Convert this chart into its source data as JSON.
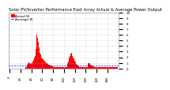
{
  "title": "Solar PV/Inverter Performance East Array Actual & Average Power Output",
  "legend_actual": "Actual W",
  "legend_avg": "Average W",
  "bg_color": "#ffffff",
  "plot_bg_color": "#ffffff",
  "grid_color": "#bbbbbb",
  "bar_color": "#ff0000",
  "avg_line_color": "#0000ff",
  "avg_line_style": "--",
  "avg_value": 0.055,
  "ylim": [
    0,
    1.0
  ],
  "ytick_labels": [
    "0",
    "1",
    "2",
    "3",
    "4",
    "5",
    "6",
    "7",
    "8",
    "9",
    "10"
  ],
  "ytick_vals": [
    0.0,
    0.1,
    0.2,
    0.3,
    0.4,
    0.5,
    0.6,
    0.7,
    0.8,
    0.9,
    1.0
  ],
  "bar_heights": [
    0.0,
    0.0,
    0.0,
    0.0,
    0.0,
    0.0,
    0.0,
    0.0,
    0.0,
    0.0,
    0.0,
    0.0,
    0.0,
    0.0,
    0.0,
    0.0,
    0.0,
    0.0,
    0.0,
    0.0,
    0.0,
    0.0,
    0.0,
    0.0,
    0.0,
    0.0,
    0.0,
    0.0,
    0.0,
    0.0,
    0.02,
    0.03,
    0.05,
    0.07,
    0.09,
    0.1,
    0.11,
    0.1,
    0.09,
    0.08,
    0.09,
    0.1,
    0.11,
    0.13,
    0.15,
    0.18,
    0.2,
    0.22,
    0.24,
    0.35,
    0.6,
    0.65,
    0.55,
    0.48,
    0.38,
    0.32,
    0.28,
    0.25,
    0.22,
    0.2,
    0.18,
    0.17,
    0.16,
    0.15,
    0.14,
    0.13,
    0.12,
    0.11,
    0.1,
    0.09,
    0.08,
    0.07,
    0.07,
    0.07,
    0.06,
    0.06,
    0.06,
    0.05,
    0.05,
    0.04,
    0.04,
    0.04,
    0.03,
    0.03,
    0.03,
    0.03,
    0.03,
    0.03,
    0.02,
    0.02,
    0.02,
    0.02,
    0.02,
    0.02,
    0.02,
    0.02,
    0.02,
    0.02,
    0.02,
    0.02,
    0.02,
    0.02,
    0.02,
    0.02,
    0.02,
    0.02,
    0.08,
    0.1,
    0.12,
    0.15,
    0.2,
    0.22,
    0.24,
    0.26,
    0.28,
    0.25,
    0.22,
    0.2,
    0.18,
    0.16,
    0.14,
    0.12,
    0.1,
    0.08,
    0.07,
    0.06,
    0.05,
    0.04,
    0.04,
    0.03,
    0.03,
    0.03,
    0.02,
    0.02,
    0.02,
    0.02,
    0.02,
    0.02,
    0.02,
    0.02,
    0.02,
    0.02,
    0.02,
    0.02,
    0.07,
    0.09,
    0.1,
    0.09,
    0.08,
    0.07,
    0.06,
    0.05,
    0.05,
    0.04,
    0.04,
    0.04,
    0.03,
    0.03,
    0.03,
    0.03,
    0.03,
    0.02,
    0.02,
    0.02,
    0.02,
    0.02,
    0.02,
    0.02,
    0.02,
    0.02,
    0.02,
    0.02,
    0.02,
    0.02,
    0.02,
    0.02,
    0.02,
    0.02,
    0.02,
    0.02,
    0.02,
    0.02,
    0.02,
    0.02,
    0.02,
    0.02,
    0.02,
    0.02,
    0.02,
    0.02,
    0.02,
    0.02,
    0.02,
    0.02,
    0.02,
    0.02,
    0.02,
    0.02,
    0.02,
    0.02
  ],
  "title_fontsize": 3.8,
  "tick_fontsize": 2.8,
  "legend_fontsize": 3.0
}
